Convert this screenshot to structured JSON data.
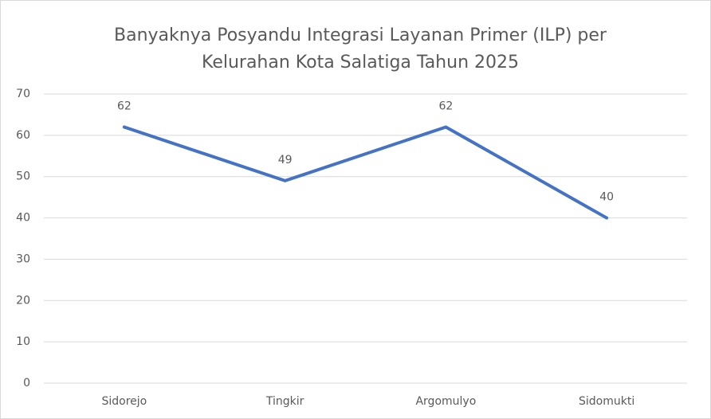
{
  "chart_data": {
    "type": "line",
    "title": [
      "Banyaknya Posyandu Integrasi Layanan Primer (ILP) per",
      "Kelurahan Kota Salatiga Tahun 2025"
    ],
    "categories": [
      "Sidorejo",
      "Tingkir",
      "Argomulyo",
      "Sidomukti"
    ],
    "values": [
      62,
      49,
      62,
      40
    ],
    "color": "#4472c4",
    "ylim": [
      0,
      70
    ],
    "yticks": [
      0,
      10,
      20,
      30,
      40,
      50,
      60,
      70
    ],
    "grid": true
  }
}
